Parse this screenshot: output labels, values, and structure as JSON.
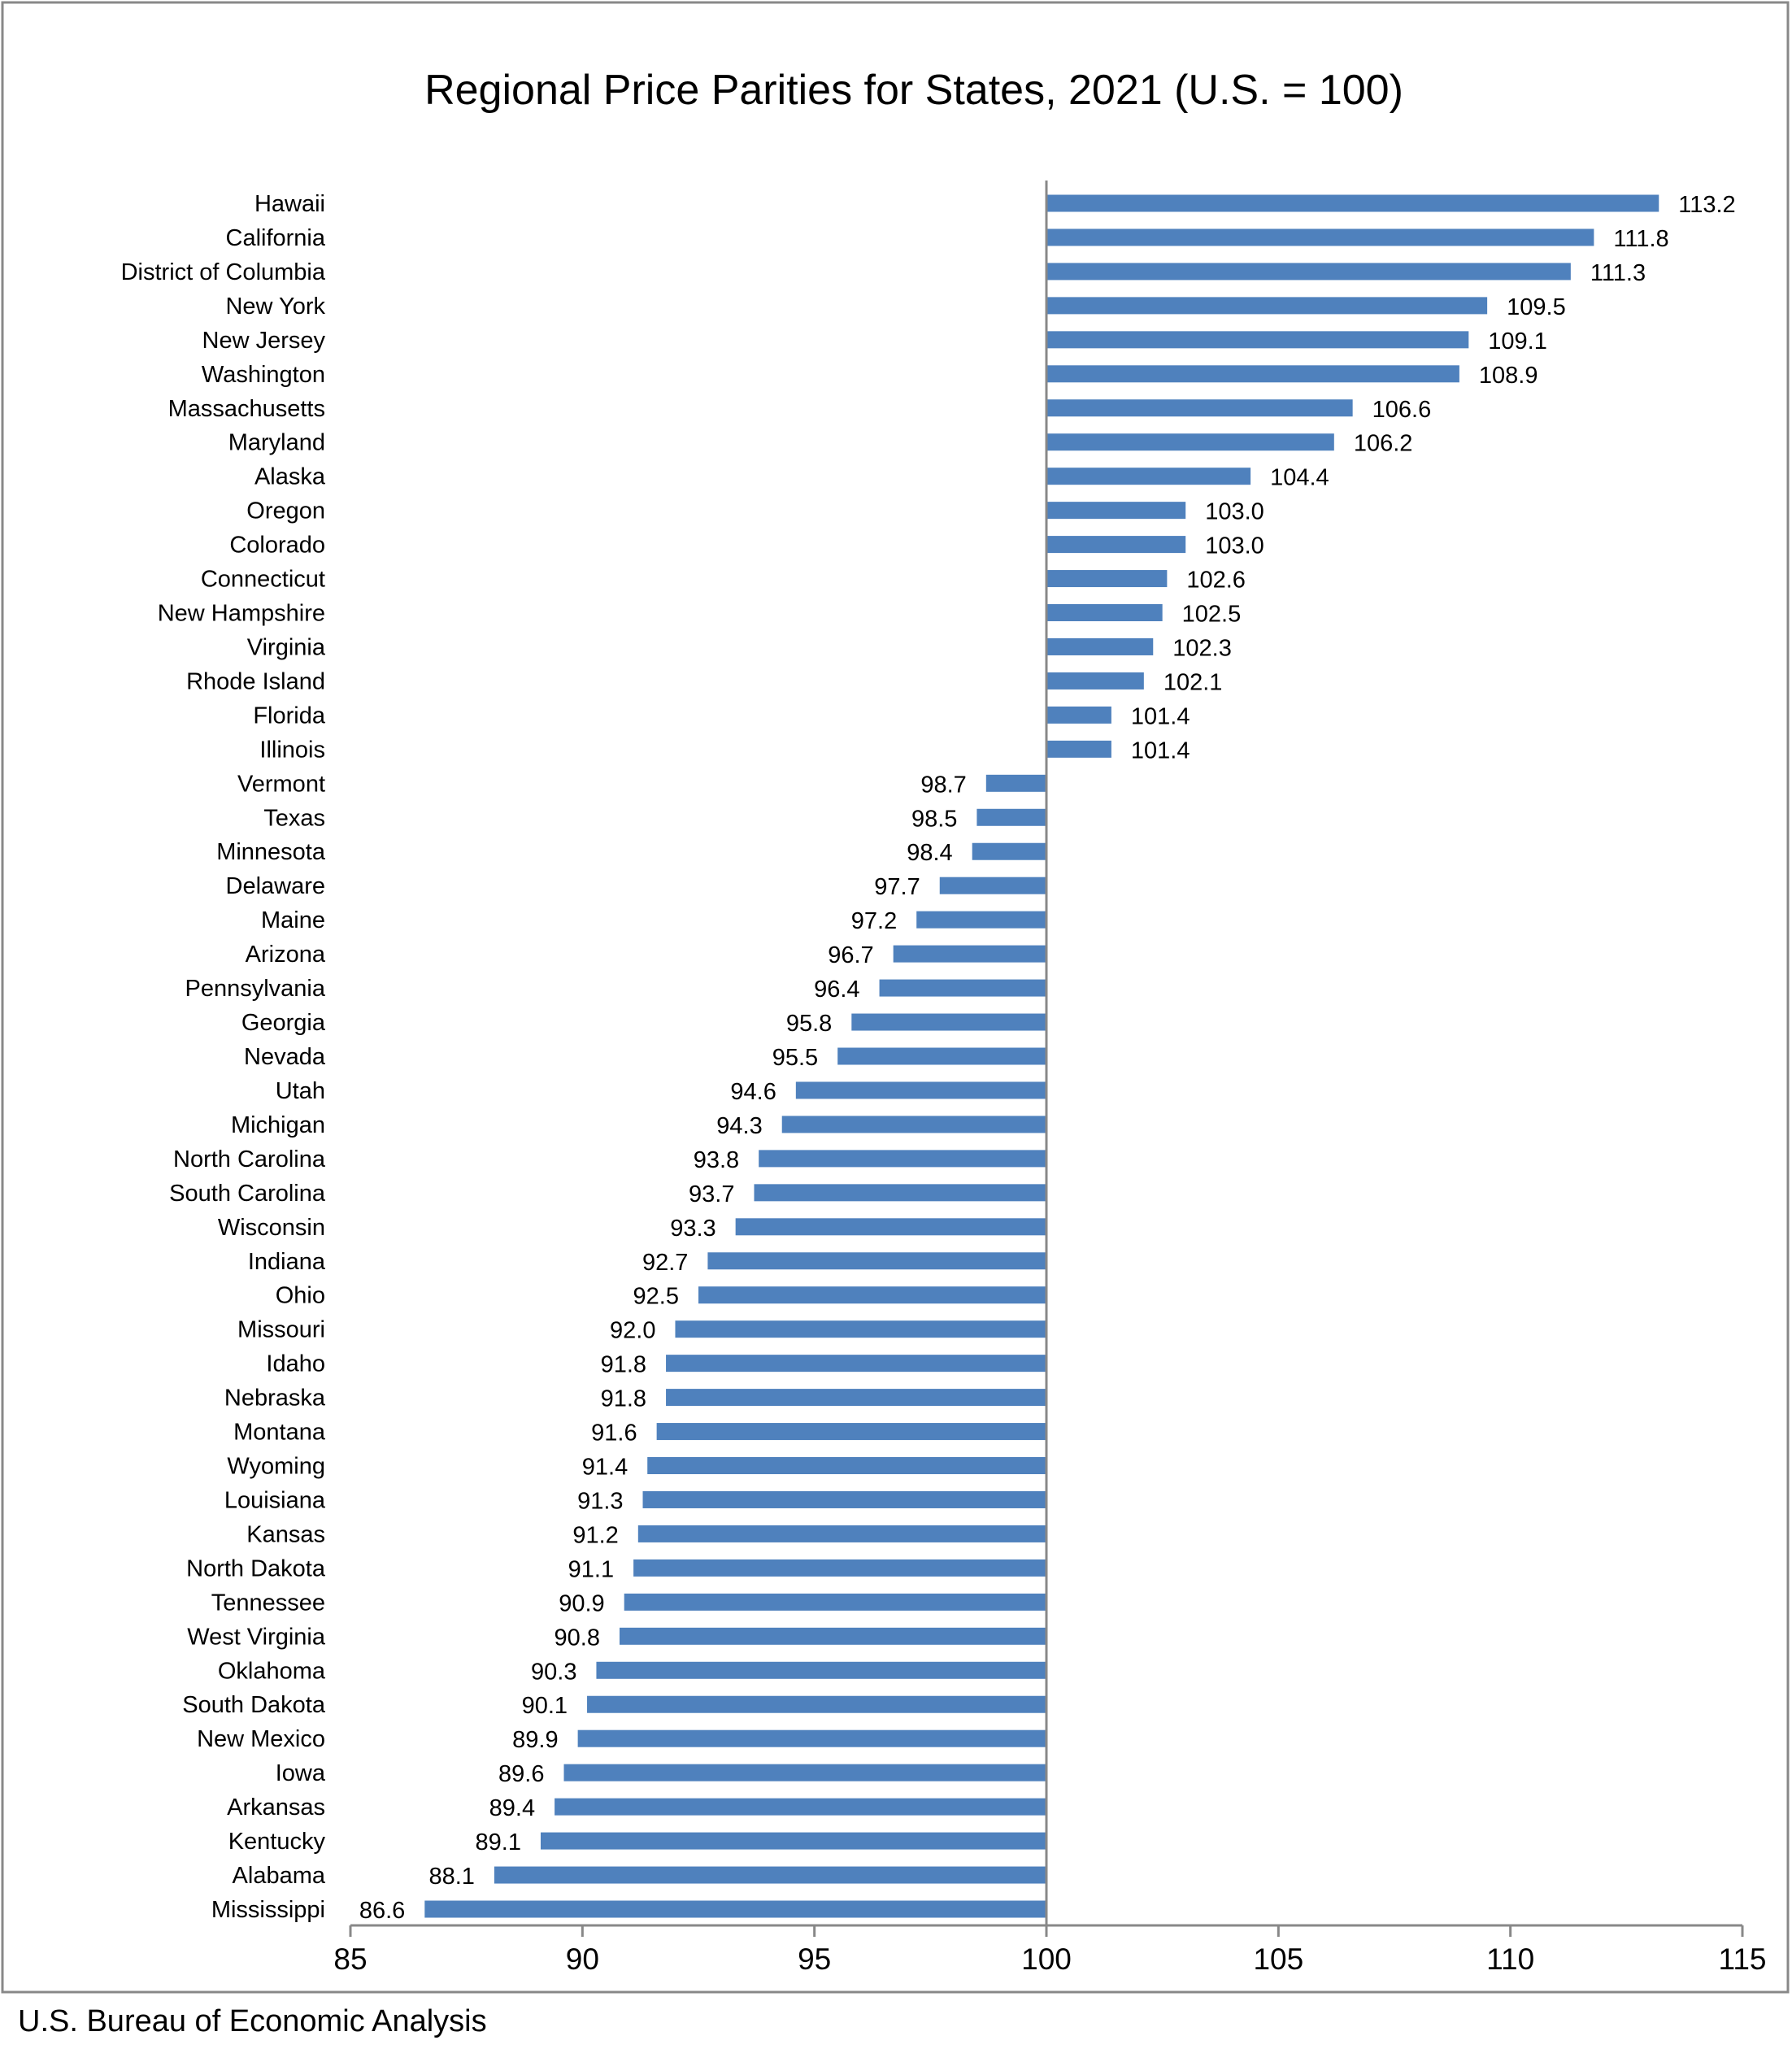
{
  "chart_data": {
    "type": "bar",
    "orientation": "horizontal",
    "title": "Regional Price Parities for States, 2021 (U.S. = 100)",
    "xlabel": "",
    "ylabel": "",
    "baseline": 100,
    "xlim": [
      85,
      115
    ],
    "xticks": [
      85,
      90,
      95,
      100,
      105,
      110,
      115
    ],
    "grid": false,
    "bar_color": "#4f81bd",
    "categories": [
      "Hawaii",
      "California",
      "District of Columbia",
      "New York",
      "New Jersey",
      "Washington",
      "Massachusetts",
      "Maryland",
      "Alaska",
      "Oregon",
      "Colorado",
      "Connecticut",
      "New Hampshire",
      "Virginia",
      "Rhode Island",
      "Florida",
      "Illinois",
      "Vermont",
      "Texas",
      "Minnesota",
      "Delaware",
      "Maine",
      "Arizona",
      "Pennsylvania",
      "Georgia",
      "Nevada",
      "Utah",
      "Michigan",
      "North Carolina",
      "South Carolina",
      "Wisconsin",
      "Indiana",
      "Ohio",
      "Missouri",
      "Idaho",
      "Nebraska",
      "Montana",
      "Wyoming",
      "Louisiana",
      "Kansas",
      "North Dakota",
      "Tennessee",
      "West Virginia",
      "Oklahoma",
      "South Dakota",
      "New Mexico",
      "Iowa",
      "Arkansas",
      "Kentucky",
      "Alabama",
      "Mississippi"
    ],
    "values": [
      113.2,
      111.8,
      111.3,
      109.5,
      109.1,
      108.9,
      106.6,
      106.2,
      104.4,
      103.0,
      103.0,
      102.6,
      102.5,
      102.3,
      102.1,
      101.4,
      101.4,
      98.7,
      98.5,
      98.4,
      97.7,
      97.2,
      96.7,
      96.4,
      95.8,
      95.5,
      94.6,
      94.3,
      93.8,
      93.7,
      93.3,
      92.7,
      92.5,
      92.0,
      91.8,
      91.8,
      91.6,
      91.4,
      91.3,
      91.2,
      91.1,
      90.9,
      90.8,
      90.3,
      90.1,
      89.9,
      89.6,
      89.4,
      89.1,
      88.1,
      86.6
    ]
  },
  "source": "U.S. Bureau of Economic Analysis"
}
